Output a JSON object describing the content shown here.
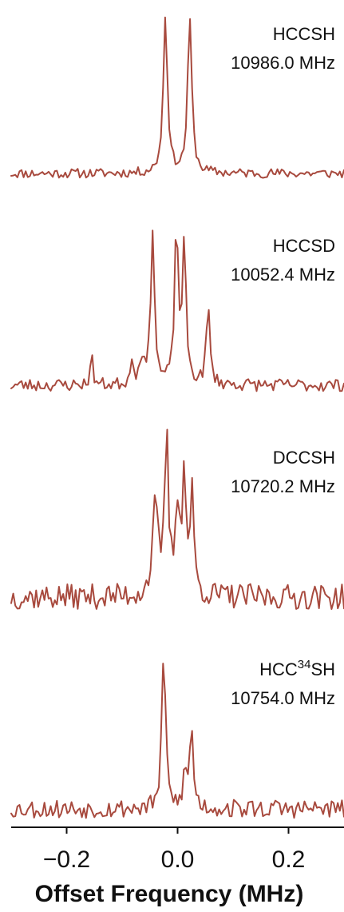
{
  "chart_data": {
    "type": "line",
    "xlabel": "Offset Frequency (MHz)",
    "xlim": [
      -0.3,
      0.3
    ],
    "xticks": [
      -0.2,
      0.0,
      0.2
    ],
    "xtick_labels": [
      "−0.2",
      "0.0",
      "0.2"
    ],
    "grid": false,
    "line_color": "#a84a3e",
    "panels": [
      {
        "molecule": "HCCSH",
        "label_main": "HCCSH",
        "label_sup": "",
        "label_tail": "",
        "frequency_label": "10986.0 MHz",
        "features": [
          {
            "x": -0.022,
            "height": 1.0,
            "width": 0.0045
          },
          {
            "x": 0.022,
            "height": 0.98,
            "width": 0.0045
          }
        ],
        "noise": 0.03,
        "seed": 11
      },
      {
        "molecule": "HCCSD",
        "label_main": "HCCSD",
        "label_sup": "",
        "label_tail": "",
        "frequency_label": "10052.4 MHz",
        "features": [
          {
            "x": -0.045,
            "height": 1.0,
            "width": 0.004
          },
          {
            "x": -0.002,
            "height": 0.98,
            "width": 0.004
          },
          {
            "x": 0.012,
            "height": 0.85,
            "width": 0.004
          },
          {
            "x": 0.055,
            "height": 0.48,
            "width": 0.004
          },
          {
            "x": -0.065,
            "height": 0.18,
            "width": 0.004
          },
          {
            "x": -0.155,
            "height": 0.18,
            "width": 0.003
          },
          {
            "x": -0.082,
            "height": 0.18,
            "width": 0.003
          }
        ],
        "noise": 0.04,
        "seed": 23
      },
      {
        "molecule": "DCCSH",
        "label_main": "DCCSH",
        "label_sup": "",
        "label_tail": "",
        "frequency_label": "10720.2 MHz",
        "features": [
          {
            "x": -0.02,
            "height": 1.0,
            "width": 0.004
          },
          {
            "x": -0.04,
            "height": 0.55,
            "width": 0.006
          },
          {
            "x": 0.0,
            "height": 0.55,
            "width": 0.005
          },
          {
            "x": 0.012,
            "height": 0.7,
            "width": 0.004
          },
          {
            "x": 0.026,
            "height": 0.62,
            "width": 0.004
          }
        ],
        "noise": 0.08,
        "seed": 37
      },
      {
        "molecule": "HCC34SH",
        "label_main": "HCC",
        "label_sup": "34",
        "label_tail": "SH",
        "frequency_label": "10754.0 MHz",
        "features": [
          {
            "x": -0.025,
            "height": 1.0,
            "width": 0.004
          },
          {
            "x": 0.025,
            "height": 0.5,
            "width": 0.004
          },
          {
            "x": 0.013,
            "height": 0.2,
            "width": 0.004
          }
        ],
        "noise": 0.06,
        "seed": 53
      }
    ]
  }
}
